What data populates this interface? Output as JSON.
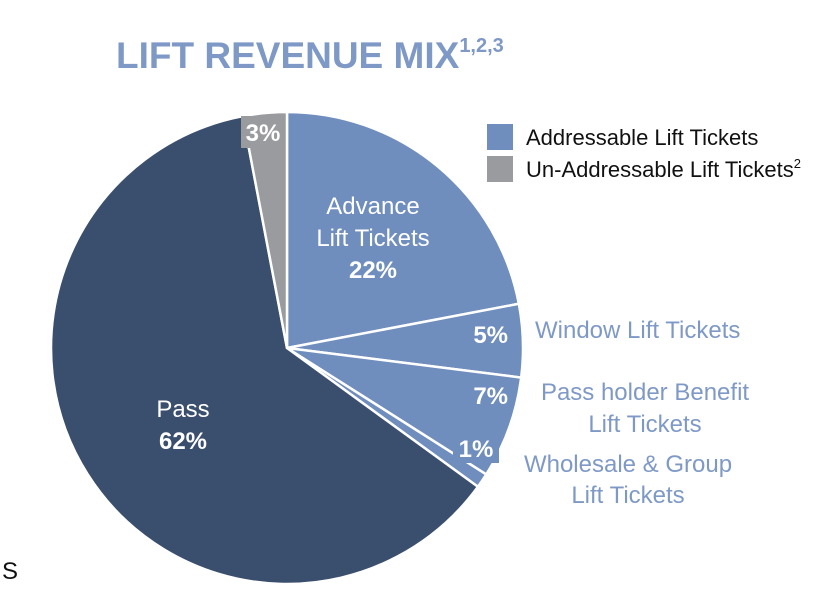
{
  "chart_data": {
    "type": "pie",
    "title": "LIFT REVENUE MIX",
    "title_superscript": "1,2,3",
    "slices": [
      {
        "name": "Advance Lift Tickets",
        "lines": [
          "Advance",
          "Lift Tickets"
        ],
        "value": 22,
        "label": "22%",
        "group": "addressable"
      },
      {
        "name": "Window Lift Tickets",
        "lines": [
          "Window Lift Tickets"
        ],
        "value": 5,
        "label": "5%",
        "group": "addressable"
      },
      {
        "name": "Pass holder Benefit Lift Tickets",
        "lines": [
          "Pass holder Benefit",
          "Lift Tickets"
        ],
        "value": 7,
        "label": "7%",
        "group": "addressable"
      },
      {
        "name": "Wholesale & Group Lift Tickets",
        "lines": [
          "Wholesale & Group",
          "Lift Tickets"
        ],
        "value": 1,
        "label": "1%",
        "group": "addressable"
      },
      {
        "name": "Pass",
        "lines": [
          "Pass"
        ],
        "value": 62,
        "label": "62%",
        "group": "pass"
      },
      {
        "name": "Un-Addressable Lift Tickets",
        "lines": [],
        "value": 3,
        "label": "3%",
        "group": "unaddressable"
      }
    ],
    "legend": [
      {
        "label": "Addressable Lift Tickets",
        "sup": "",
        "color": "#6f8dbd"
      },
      {
        "label": "Un-Addressable Lift Tickets",
        "sup": "2",
        "color": "#9a9b9f"
      }
    ],
    "colors": {
      "addressable": "#6f8dbd",
      "pass": "#3a4e6e",
      "unaddressable": "#9a9b9f",
      "outside_label": "#7f99c7",
      "separator": "#ffffff"
    }
  },
  "page_fragment": {
    "text": "S"
  }
}
